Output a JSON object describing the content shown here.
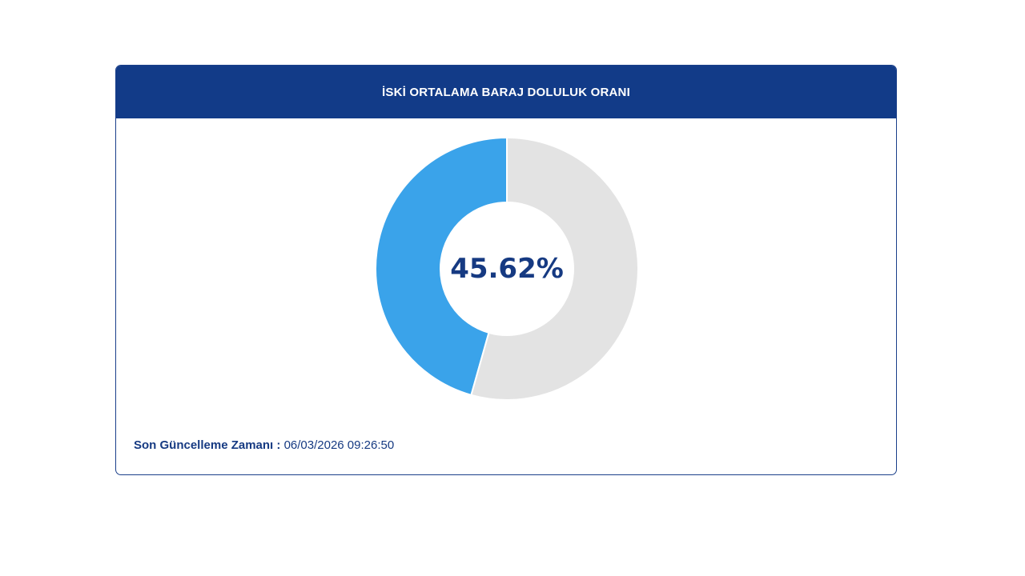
{
  "header": {
    "title": "İSKİ ORTALAMA BARAJ DOLULUK ORANI"
  },
  "chart_data": {
    "type": "pie",
    "variant": "donut",
    "title": "İSKİ ORTALAMA BARAJ DOLULUK ORANI",
    "center_label": "45.62%",
    "slices": [
      {
        "name": "",
        "value": 45.62,
        "color": "#3aa3ea"
      },
      {
        "name": "",
        "value": 54.38,
        "color": "#e3e3e3"
      }
    ],
    "start": "12 o'clock",
    "direction": "counter-clockwise",
    "legend": "none"
  },
  "footer": {
    "label": "Son Güncelleme Zamanı :",
    "value": "06/03/2026 09:26:50"
  },
  "colors": {
    "header_bg": "#123b88",
    "text_primary": "#163a82",
    "fill": "#3aa3ea",
    "empty": "#e3e3e3"
  }
}
